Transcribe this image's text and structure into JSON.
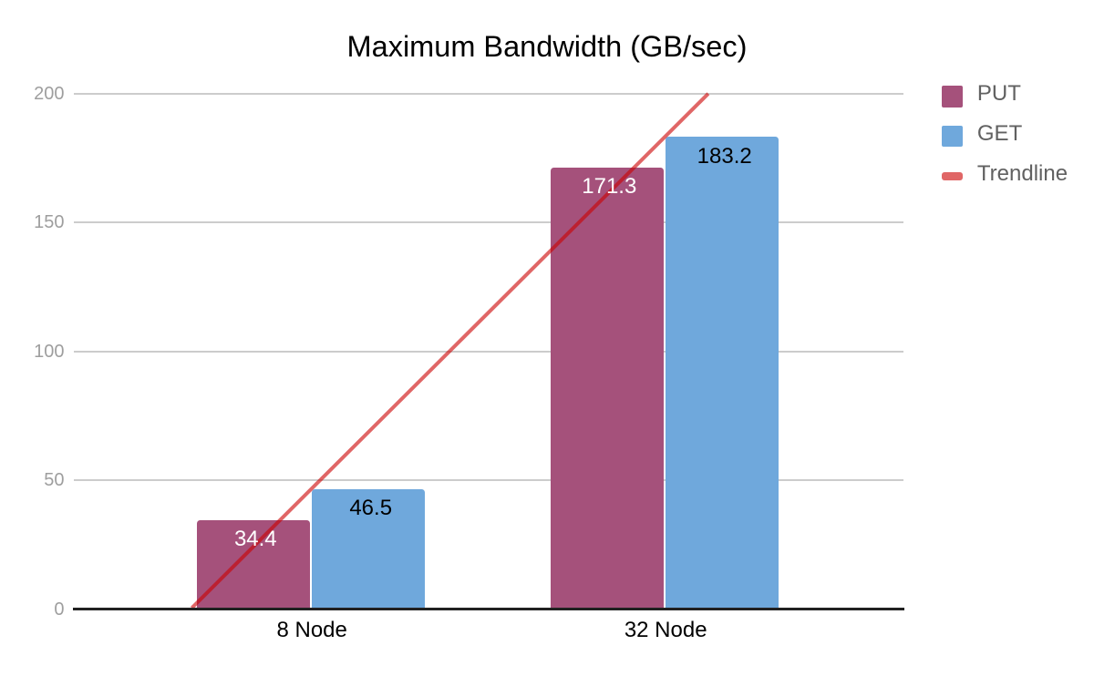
{
  "page": {
    "background": "#ffffff"
  },
  "chart_data": {
    "type": "bar",
    "title": "Maximum Bandwidth (GB/sec)",
    "title_color": "#000000",
    "categories": [
      "8 Node",
      "32 Node"
    ],
    "series": [
      {
        "name": "PUT",
        "color": "#a5517b",
        "label_color": "#ffffff",
        "values": [
          34.4,
          171.3
        ]
      },
      {
        "name": "GET",
        "color": "#6fa8dc",
        "label_color": "#000000",
        "values": [
          46.5,
          183.2
        ]
      }
    ],
    "trendline": {
      "name": "Trendline",
      "fits_series": "GET",
      "color": "#cc0000",
      "opacity": 0.6,
      "apparent_color": "#e06666"
    },
    "yaxis": {
      "min": 0,
      "max": 200,
      "ticks": [
        0,
        50,
        100,
        150,
        200
      ],
      "tick_label_color": "#9e9e9e"
    },
    "xaxis": {
      "label_color": "#000000",
      "axis_line_color": "#212121"
    },
    "grid": true,
    "gridline_color": "#cccccc",
    "legend_position": "right",
    "legend_text_color": "#616161"
  }
}
